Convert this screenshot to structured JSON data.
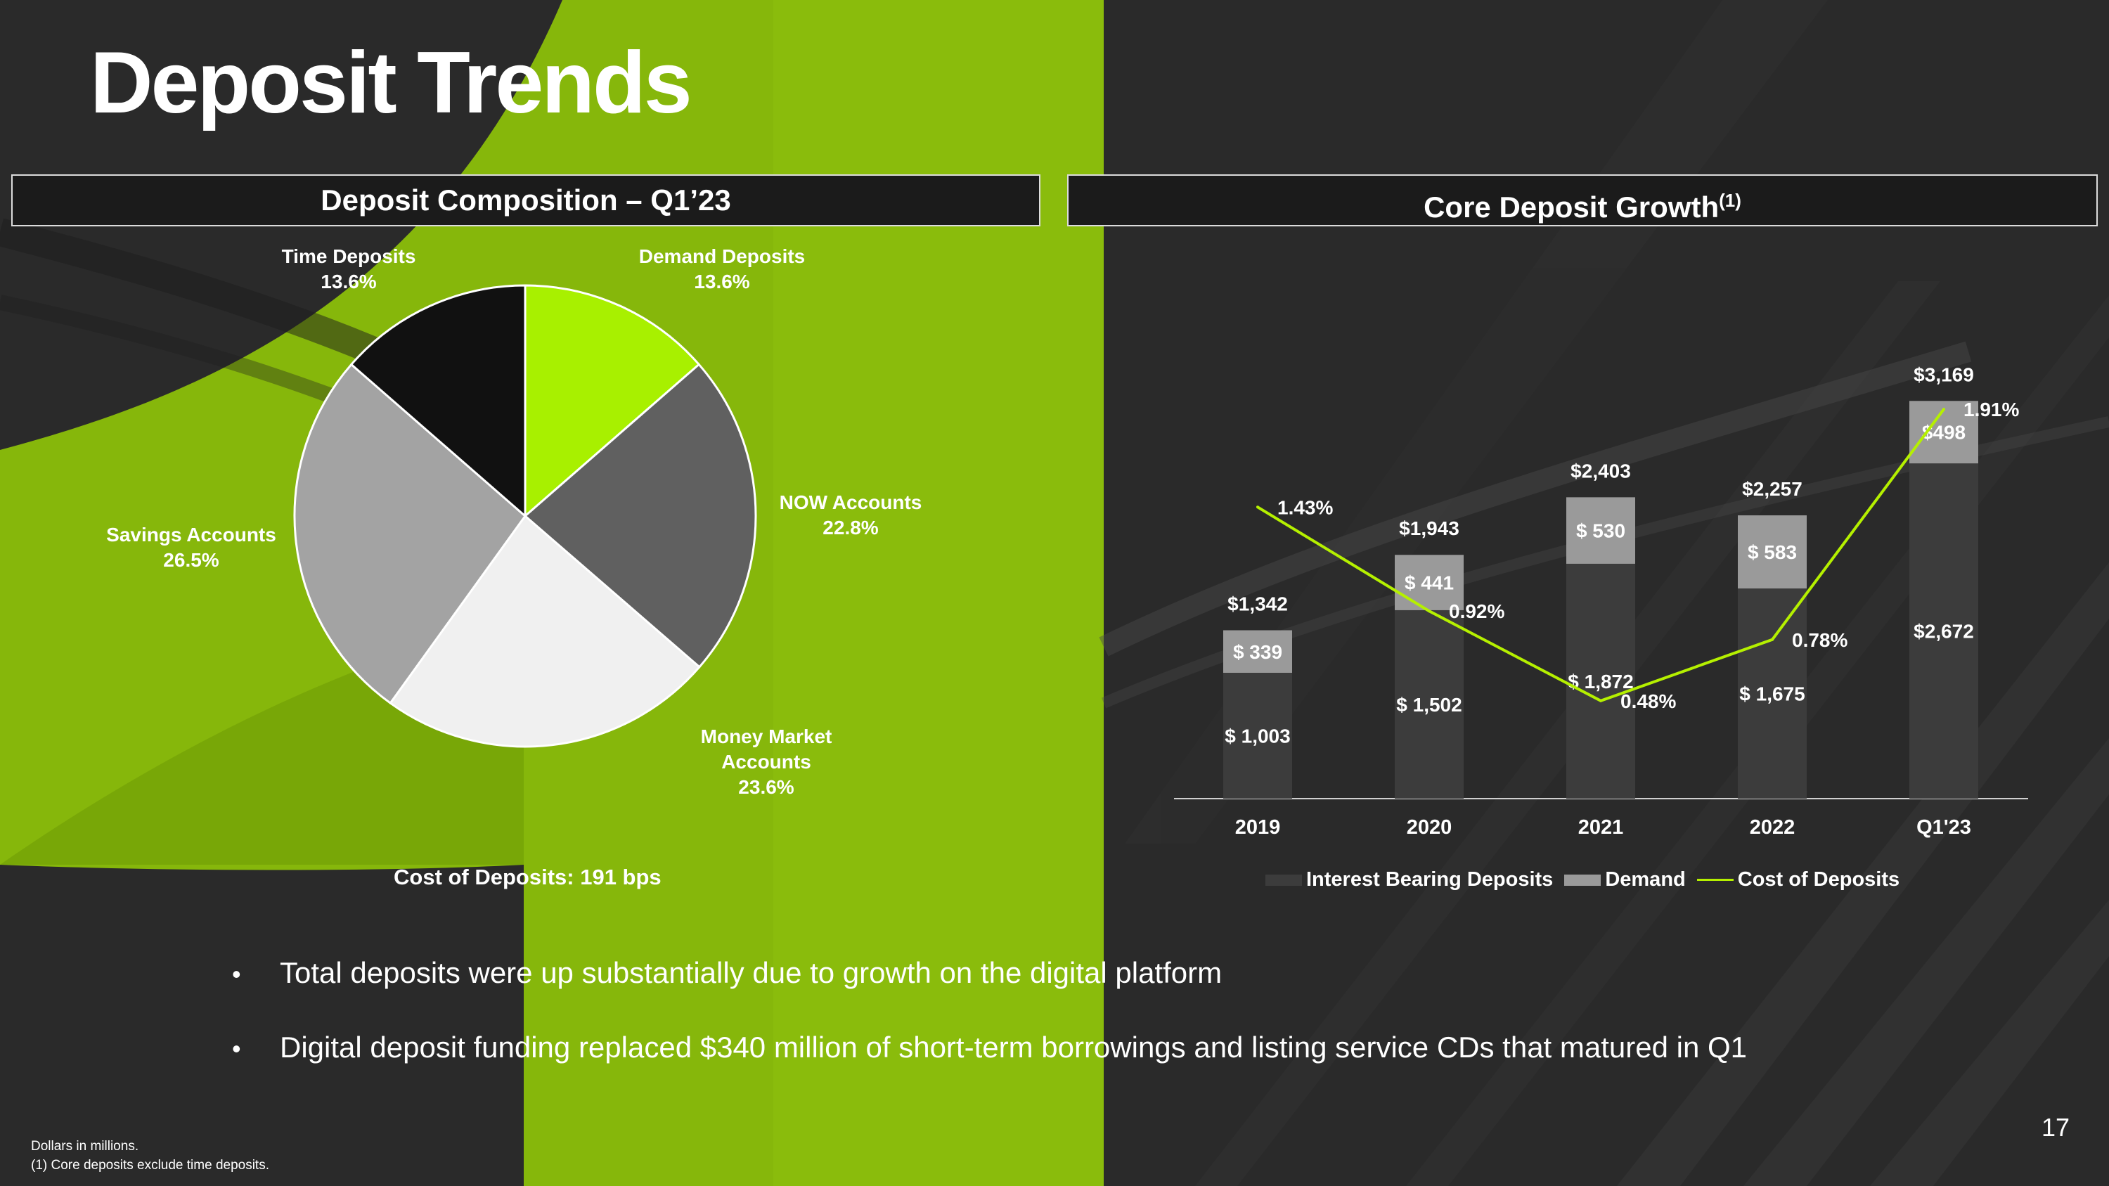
{
  "title": "Deposit Trends",
  "left_panel": {
    "header": "Deposit Composition – Q1’23",
    "cost_note": "Cost of Deposits: 191 bps"
  },
  "right_panel": {
    "header": "Core Deposit Growth",
    "header_sup": "(1)"
  },
  "colors": {
    "accent": "#a8f000",
    "green_band": "#8bbf0a",
    "bar_interest": "#3c3c3c",
    "bar_demand": "#9a9a9a",
    "line": "#b5f000"
  },
  "chart_data": [
    {
      "type": "pie",
      "title": "Deposit Composition – Q1’23",
      "slices": [
        {
          "label": "Demand Deposits",
          "value": 13.6,
          "display": "13.6%",
          "color": "#a8f000"
        },
        {
          "label": "NOW Accounts",
          "value": 22.8,
          "display": "22.8%",
          "color": "#606060"
        },
        {
          "label": "Money Market Accounts",
          "value": 23.6,
          "display": "23.6%",
          "color": "#f0f0f0"
        },
        {
          "label": "Savings Accounts",
          "value": 26.5,
          "display": "26.5%",
          "color": "#a3a3a3"
        },
        {
          "label": "Time Deposits",
          "value": 13.6,
          "display": "13.6%",
          "color": "#111111"
        }
      ]
    },
    {
      "type": "bar",
      "stacked": true,
      "title": "Core Deposit Growth",
      "categories": [
        "2019",
        "2020",
        "2021",
        "2022",
        "Q1'23"
      ],
      "series": [
        {
          "name": "Interest Bearing Deposits",
          "values": [
            1003,
            1502,
            1872,
            1675,
            2672
          ],
          "labels": [
            "$ 1,003",
            "$ 1,502",
            "$ 1,872",
            "$ 1,675",
            "$2,672"
          ]
        },
        {
          "name": "Demand",
          "values": [
            339,
            441,
            530,
            583,
            498
          ],
          "labels": [
            "$ 339",
            "$ 441",
            "$ 530",
            "$ 583",
            "$498"
          ]
        }
      ],
      "totals": [
        "$1,342",
        "$1,943",
        "$2,403",
        "$2,257",
        "$3,169"
      ],
      "line": {
        "name": "Cost of Deposits",
        "values": [
          1.43,
          0.92,
          0.48,
          0.78,
          1.91
        ],
        "labels": [
          "1.43%",
          "0.92%",
          "0.48%",
          "0.78%",
          "1.91%"
        ]
      },
      "ylim": [
        0,
        3900
      ],
      "line_ylim": [
        0,
        2.4
      ],
      "legend": "bottom"
    }
  ],
  "bullets": [
    "Total deposits were up substantially due to growth on the digital platform",
    "Digital deposit funding replaced $340 million of short-term borrowings and listing service CDs that matured in Q1"
  ],
  "footnotes": [
    "Dollars in millions.",
    "(1) Core deposits exclude time deposits."
  ],
  "page_number": "17"
}
